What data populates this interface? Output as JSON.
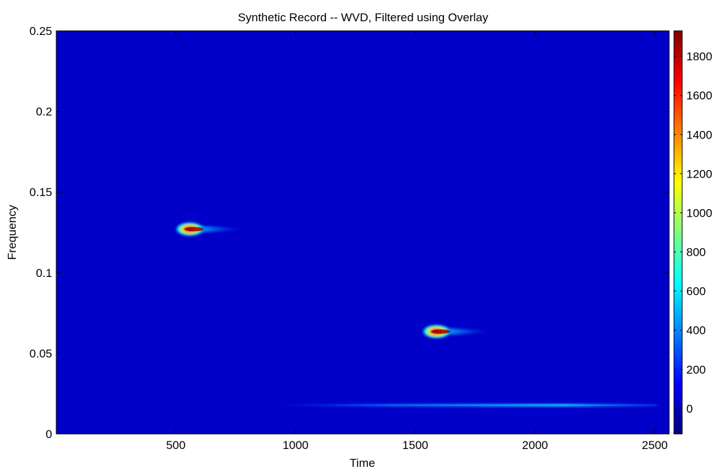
{
  "chart_data": {
    "type": "heatmap",
    "title": "Synthetic Record -- WVD, Filtered using Overlay",
    "xlabel": "Time",
    "ylabel": "Frequency",
    "xlim": [
      1,
      2560
    ],
    "ylim": [
      0,
      0.25
    ],
    "x_ticks": [
      500,
      1000,
      1500,
      2000,
      2500
    ],
    "x_tick_labels": [
      "500",
      "1000",
      "1500",
      "2000",
      "2500"
    ],
    "y_ticks": [
      0,
      0.05,
      0.1,
      0.15,
      0.2,
      0.25
    ],
    "y_tick_labels": [
      "0",
      "0.05",
      "0.1",
      "0.15",
      "0.2",
      "0.25"
    ],
    "colormap": "jet",
    "background_color": "#0000c8",
    "colorbar": {
      "range": [
        -130,
        1930
      ],
      "ticks": [
        0,
        200,
        400,
        600,
        800,
        1000,
        1200,
        1400,
        1600,
        1800
      ],
      "tick_labels": [
        "0",
        "200",
        "400",
        "600",
        "800",
        "1000",
        "1200",
        "1400",
        "1600",
        "1800"
      ],
      "placement": "right"
    },
    "features": [
      {
        "time": 570,
        "frequency": 0.127,
        "peak": 1930,
        "tail_end_time": 800
      },
      {
        "time": 1600,
        "frequency": 0.0635,
        "peak": 1800,
        "tail_end_time": 1840
      },
      {
        "time_start": 940,
        "time_end": 2510,
        "frequency": 0.0178,
        "peak": 420
      }
    ],
    "grid": false
  }
}
